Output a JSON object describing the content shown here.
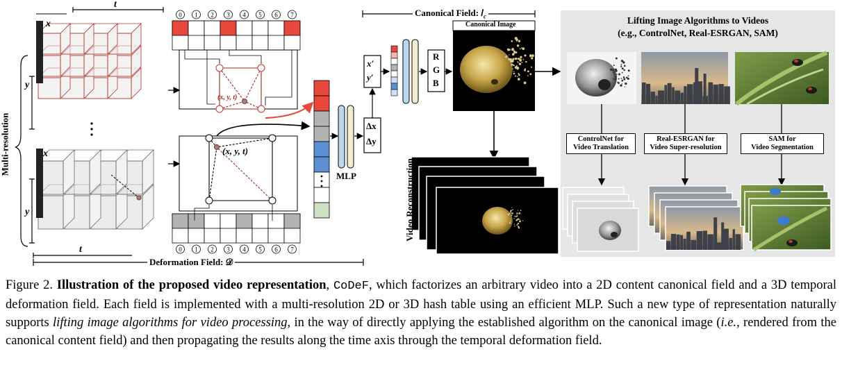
{
  "deformation": {
    "multi_resolution_label": "Multi-resolution",
    "axis_t": "t",
    "axis_x": "x",
    "axis_y": "y",
    "field_label": "Deformation Field: 𝒟",
    "point_label": "(x, y, t)",
    "hash_indices": [
      "0",
      "1",
      "2",
      "3",
      "4",
      "5",
      "6",
      "7"
    ],
    "top_table_colors": [
      "#e8483b",
      "#ffffff",
      "#ffffff",
      "#e8483b",
      "#ffffff",
      "#ffffff",
      "#ffffff",
      "#e8483b"
    ],
    "bottom_table_colors": [
      "#b3b3b3",
      "#b3b3b3",
      "#ffffff",
      "#ffffff",
      "#b3b3b3",
      "#ffffff",
      "#ffffff",
      "#b3b3b3"
    ],
    "feature_colors": [
      "#e8483b",
      "#e8483b",
      "#b3b3b3",
      "#b3b3b3",
      "#5b8fd1",
      "#5b8fd1",
      "#ffffff",
      "#ffffff",
      "#cfe0c3"
    ]
  },
  "network": {
    "mlp_label": "MLP",
    "delta_x": "Δx",
    "delta_y": "Δy",
    "x_prime": "x′",
    "y_prime": "y′",
    "rgb": [
      "R",
      "G",
      "B"
    ]
  },
  "canonical": {
    "field_label": "Canonical Field: 𝐼",
    "field_subscript": "c",
    "image_title": "Canonical Image",
    "reconstruction_label": "Video Reconstruction"
  },
  "lifting": {
    "title_line1": "Lifting Image Algorithms to Videos",
    "title_line2": "(e.g., ControlNet, Real-ESRGAN, SAM)",
    "algorithms": [
      {
        "line1": "ControlNet for",
        "line2": "Video Translation"
      },
      {
        "line1": "Real-ESRGAN for",
        "line2": "Video Super-resolution"
      },
      {
        "line1": "SAM for",
        "line2": "Video Segmentation"
      }
    ]
  },
  "caption": {
    "prefix": "Figure 2.",
    "bold_title": "Illustration of the proposed video representation",
    "comma": ",",
    "method": "CoDeF",
    "text1": ", which factorizes an arbitrary video into a 2D content canonical field and a 3D temporal deformation field. Each field is implemented with a multi-resolution 2D or 3D hash table using an efficient MLP. Such a new type of representation naturally supports ",
    "italic1": "lifting image algorithms for video processing",
    "text2": ", in the way of directly applying the established algorithm on the canonical image (",
    "italic2": "i.e.",
    "text3": ", rendered from the canonical content field) and then propagating the results along the time axis through the temporal deformation field."
  }
}
